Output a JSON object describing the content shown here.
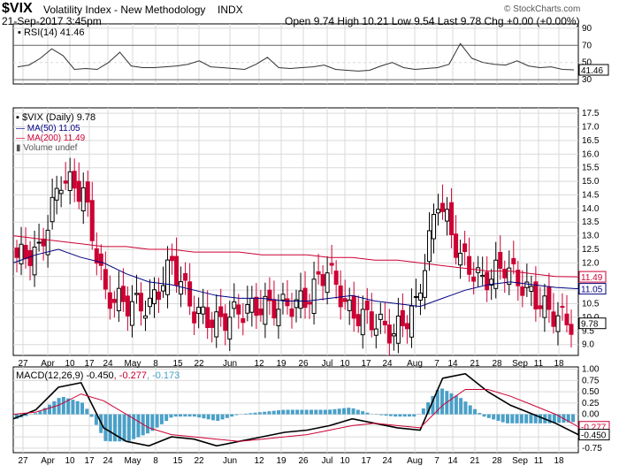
{
  "header": {
    "symbol": "$VIX",
    "name": "Volatility Index - New Methodology",
    "exchange": "INDX",
    "watermark": "© StockCharts.com",
    "date": "21-Sep-2017 3:45pm",
    "ohlc_text": "Open 9.74  High 10.21  Low 9.54  Last 9.78  Chg +0.00 (+0.00%)"
  },
  "rsi": {
    "label": "RSI(14) 41.46",
    "value_tag": "41.46",
    "ticks": [
      "90",
      "70",
      "50",
      "30"
    ]
  },
  "main": {
    "label_price": "$VIX (Daily) 9.78",
    "label_ma50": "MA(50) 11.05",
    "label_ma200": "MA(200) 11.49",
    "label_volume": "Volume undef",
    "tag_ma200": "11.49",
    "tag_ma50": "11.05",
    "tag_last": "9.78",
    "ticks": [
      "17.5",
      "17.0",
      "16.5",
      "16.0",
      "15.5",
      "15.0",
      "14.5",
      "14.0",
      "13.5",
      "13.0",
      "12.5",
      "12.0",
      "11.5",
      "11.0",
      "10.5",
      "10.0",
      "9.5",
      "9.0"
    ]
  },
  "xaxis": {
    "labels": [
      "27",
      "Apr",
      "10",
      "17",
      "24",
      "May",
      "8",
      "15",
      "22",
      "Jun",
      "12",
      "19",
      "26",
      "Jul",
      "10",
      "17",
      "24",
      "Aug",
      "7",
      "14",
      "21",
      "28",
      "Sep",
      "11",
      "18"
    ]
  },
  "macd": {
    "label_a": "MACD(12,26,9) -0.450",
    "label_b": ", -0.277",
    "label_c": ", -0.173",
    "tag_signal": "-0.277",
    "tag_macd": "-0.450",
    "ticks": [
      "1.00",
      "0.75",
      "0.50",
      "0.25",
      "0.00",
      "-0.25",
      "-0.50",
      "-0.75"
    ]
  },
  "colors": {
    "up": "#000000",
    "down": "#cc0033",
    "ma50": "#000080",
    "ma200": "#cc0033",
    "hist": "#4aa0c8",
    "grid": "#d9d9d9"
  },
  "chart_data": [
    {
      "type": "candlestick",
      "title": "$VIX (Daily) 9.78",
      "ylim": [
        8.6,
        17.7
      ],
      "x": [
        "2017-03-27",
        "2017-04-03",
        "2017-04-10",
        "2017-04-17",
        "2017-04-24",
        "2017-05-01",
        "2017-05-08",
        "2017-05-15",
        "2017-05-22",
        "2017-05-29",
        "2017-06-05",
        "2017-06-12",
        "2017-06-19",
        "2017-06-26",
        "2017-07-03",
        "2017-07-10",
        "2017-07-17",
        "2017-07-24",
        "2017-07-31",
        "2017-08-07",
        "2017-08-14",
        "2017-08-21",
        "2017-08-28",
        "2017-09-04",
        "2017-09-11",
        "2017-09-18"
      ],
      "weekly_close": [
        12.2,
        12.4,
        15.1,
        14.6,
        10.8,
        10.5,
        10.4,
        12.0,
        10.2,
        9.8,
        10.2,
        10.4,
        10.4,
        10.6,
        11.8,
        10.2,
        9.9,
        9.4,
        10.4,
        14.4,
        12.2,
        11.3,
        11.9,
        11.0,
        10.2,
        9.78
      ],
      "series": [
        {
          "name": "MA(50)",
          "values": [
            12.0,
            12.3,
            12.5,
            12.2,
            12.0,
            11.6,
            11.3,
            11.2,
            11.0,
            10.8,
            10.7,
            10.7,
            10.6,
            10.6,
            10.7,
            10.8,
            10.6,
            10.5,
            10.4,
            10.7,
            11.0,
            11.2,
            11.3,
            11.2,
            11.1,
            11.05
          ]
        },
        {
          "name": "MA(200)",
          "values": [
            13.0,
            12.9,
            12.8,
            12.7,
            12.6,
            12.6,
            12.5,
            12.5,
            12.4,
            12.4,
            12.4,
            12.3,
            12.3,
            12.3,
            12.2,
            12.2,
            12.1,
            12.1,
            12.0,
            11.9,
            11.8,
            11.7,
            11.7,
            11.6,
            11.5,
            11.49
          ]
        }
      ]
    },
    {
      "type": "line",
      "title": "RSI(14) 41.46",
      "ylim": [
        25,
        95
      ],
      "values": [
        45,
        47,
        55,
        66,
        58,
        42,
        43,
        42,
        50,
        62,
        46,
        44,
        44,
        45,
        46,
        48,
        52,
        45,
        44,
        43,
        42,
        48,
        56,
        44,
        43,
        44,
        45,
        47,
        42,
        41,
        40,
        41,
        46,
        50,
        44,
        42,
        43,
        44,
        48,
        72,
        55,
        50,
        48,
        47,
        52,
        46,
        44,
        45,
        42,
        41.46
      ]
    },
    {
      "type": "line",
      "title": "MACD(12,26,9) -0.450, -0.277, -0.173",
      "ylim": [
        -0.85,
        1.05
      ],
      "series": [
        {
          "name": "MACD(12,26,9)",
          "values": [
            -0.1,
            0.1,
            0.6,
            0.7,
            -0.3,
            -0.6,
            -0.7,
            -0.5,
            -0.55,
            -0.7,
            -0.6,
            -0.5,
            -0.4,
            -0.35,
            -0.25,
            -0.1,
            -0.2,
            -0.3,
            -0.35,
            0.8,
            0.9,
            0.5,
            0.2,
            0.0,
            -0.2,
            -0.45
          ]
        },
        {
          "name": "signal",
          "values": [
            0.0,
            0.05,
            0.2,
            0.45,
            0.3,
            0.0,
            -0.3,
            -0.45,
            -0.5,
            -0.55,
            -0.6,
            -0.55,
            -0.5,
            -0.45,
            -0.35,
            -0.25,
            -0.2,
            -0.25,
            -0.3,
            0.2,
            0.55,
            0.55,
            0.4,
            0.2,
            0.0,
            -0.277
          ]
        },
        {
          "name": "histogram",
          "values": [
            -0.1,
            0.05,
            0.4,
            0.25,
            -0.6,
            -0.6,
            -0.4,
            -0.05,
            -0.05,
            -0.15,
            0.0,
            0.05,
            0.1,
            0.1,
            0.1,
            0.15,
            0.0,
            -0.05,
            -0.05,
            0.6,
            0.35,
            -0.05,
            -0.2,
            -0.2,
            -0.2,
            -0.173
          ]
        }
      ]
    }
  ]
}
